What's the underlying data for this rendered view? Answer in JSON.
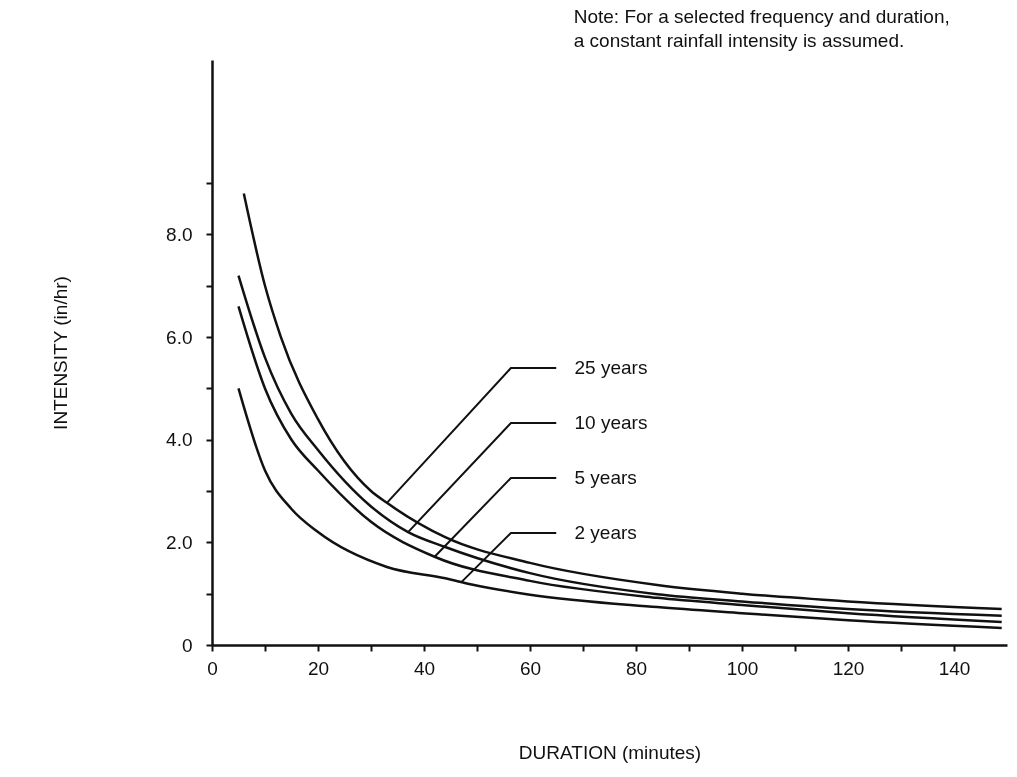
{
  "chart_data": {
    "type": "line",
    "xlabel": "DURATION (minutes)",
    "ylabel": "INTENSITY (in/hr)",
    "xlim": [
      0,
      150
    ],
    "ylim": [
      0,
      11.4
    ],
    "xticks": [
      0,
      {
        "value": 10,
        "label": null
      },
      20,
      {
        "value": 30,
        "label": null
      },
      40,
      {
        "value": 50,
        "label": null
      },
      60,
      {
        "value": 70,
        "label": null
      },
      80,
      {
        "value": 90,
        "label": null
      },
      100,
      {
        "value": 110,
        "label": null
      },
      120,
      {
        "value": 130,
        "label": null
      },
      140
    ],
    "yticks": [
      0,
      {
        "value": 1,
        "label": null
      },
      {
        "value": 2,
        "label": "2.0"
      },
      {
        "value": 3,
        "label": null
      },
      {
        "value": 4,
        "label": "4.0"
      },
      {
        "value": 5,
        "label": null
      },
      {
        "value": 6,
        "label": "6.0"
      },
      {
        "value": 7,
        "label": null
      },
      {
        "value": 8,
        "label": "8.0"
      },
      {
        "value": 9,
        "label": null
      }
    ],
    "grid": false,
    "legend": false,
    "marker": "none",
    "line_style": "solid",
    "series": [
      {
        "color": "#111111",
        "x": [
          6,
          10,
          13,
          20,
          30,
          33,
          44,
          60,
          84,
          100,
          120,
          149
        ],
        "values": [
          8.8,
          7.0,
          6.0,
          4.4,
          3.0,
          2.77,
          2.1,
          1.6,
          1.17,
          1.0,
          0.85,
          0.7
        ]
      },
      {
        "color": "#111111",
        "x": [
          5,
          10,
          15,
          20,
          30,
          37,
          44,
          60,
          84,
          100,
          120,
          149
        ],
        "values": [
          7.2,
          5.6,
          4.5,
          3.8,
          2.7,
          2.2,
          1.91,
          1.4,
          0.99,
          0.85,
          0.7,
          0.57
        ]
      },
      {
        "color": "#111111",
        "x": [
          5,
          10,
          15,
          20,
          30,
          42,
          60,
          84,
          100,
          120,
          149
        ],
        "values": [
          6.6,
          5.0,
          4.0,
          3.4,
          2.4,
          1.72,
          1.25,
          0.92,
          0.78,
          0.62,
          0.45
        ]
      },
      {
        "color": "#111111",
        "x": [
          5,
          10,
          15,
          20,
          33,
          44,
          49,
          60,
          84,
          100,
          120,
          149
        ],
        "values": [
          5.0,
          3.4,
          2.65,
          2.2,
          1.52,
          1.3,
          1.18,
          0.98,
          0.74,
          0.62,
          0.48,
          0.33
        ]
      }
    ],
    "annotations": [
      {
        "text": "25 years",
        "x": 33,
        "y": 2.77
      },
      {
        "text": "10 years",
        "x": 37,
        "y": 2.2
      },
      {
        "text": "5 years",
        "x": 42,
        "y": 1.72
      },
      {
        "text": "2 years",
        "x": 47,
        "y": 1.22
      },
      "Note: For a selected frequency and duration,\na constant rainfall intensity is assumed."
    ]
  }
}
